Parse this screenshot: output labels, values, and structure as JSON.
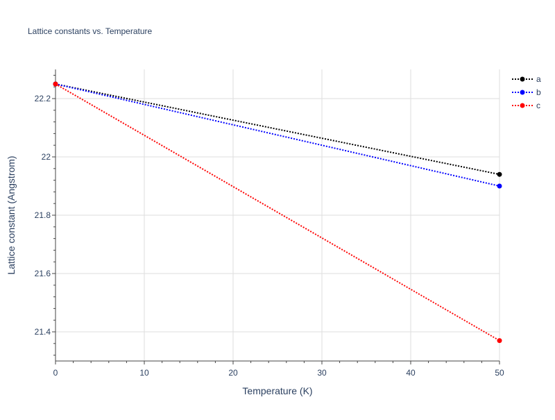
{
  "chart_data": {
    "type": "line",
    "title": "Lattice constants vs. Temperature",
    "xlabel": "Temperature (K)",
    "ylabel": "Lattice constant (Angstrom)",
    "x": [
      0,
      50
    ],
    "xlim": [
      0,
      50
    ],
    "ylim": [
      21.3,
      22.3
    ],
    "xticks": [
      0,
      10,
      20,
      30,
      40,
      50
    ],
    "yticks": [
      21.4,
      21.6,
      21.8,
      22,
      22.2
    ],
    "ytick_labels": [
      "21.4",
      "21.6",
      "21.8",
      "22",
      "22.2"
    ],
    "grid": true,
    "legend_position": "top-right",
    "series": [
      {
        "name": "a",
        "color": "#000000",
        "values": [
          22.25,
          21.94
        ]
      },
      {
        "name": "b",
        "color": "#0000ff",
        "values": [
          22.25,
          21.9
        ]
      },
      {
        "name": "c",
        "color": "#ff0000",
        "values": [
          22.25,
          21.37
        ]
      }
    ]
  }
}
